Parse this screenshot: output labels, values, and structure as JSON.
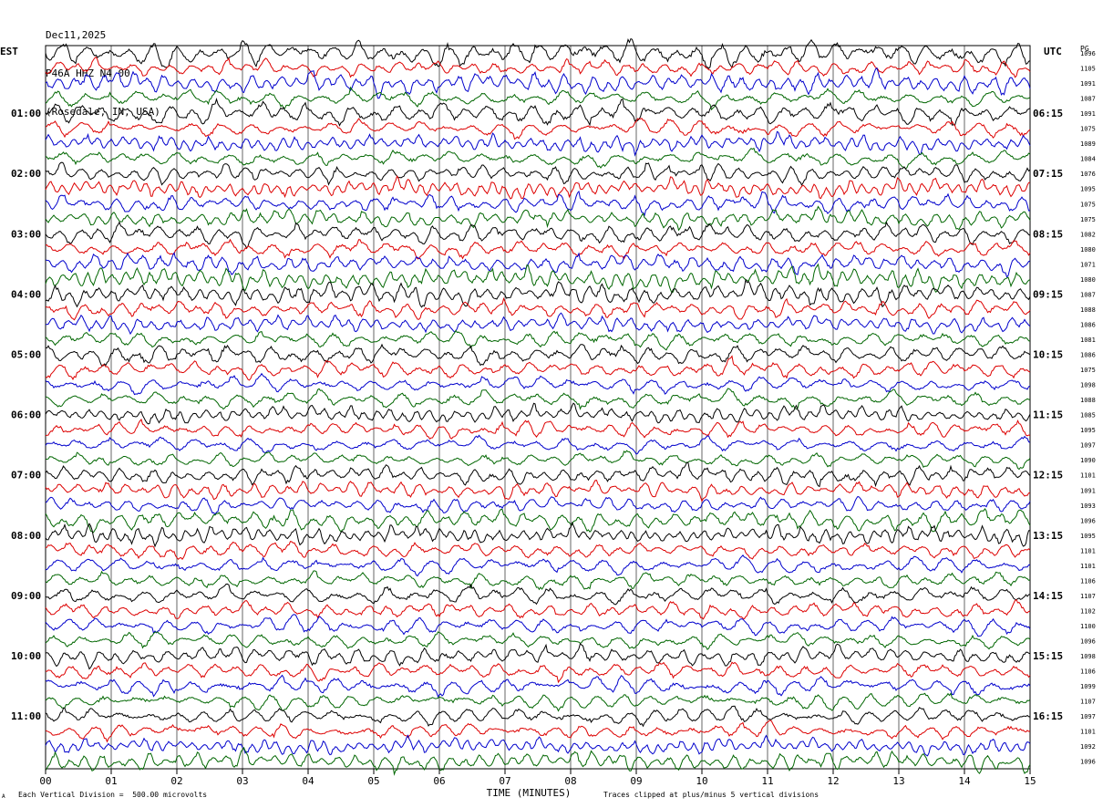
{
  "header": {
    "date": "Dec11,2025",
    "station": "P46A HHZ N4 00",
    "location": "(Rosedale, IN, USA)"
  },
  "left_timezone": "EST",
  "right_timezone": "UTC",
  "right_corner_label": "PG",
  "footer": {
    "scale_note": "Each Vertical Division =  500.00 microvolts",
    "clip_note": "Traces clipped at plus/minus 5 vertical divisions",
    "mark": "A"
  },
  "colors": {
    "trace_cycle": [
      "#000000",
      "#dd0000",
      "#0000cc",
      "#006600"
    ],
    "grid": "#000000"
  },
  "chart_data": {
    "type": "line",
    "title": "",
    "xlabel": "TIME (MINUTES)",
    "ylabel": "",
    "xlim": [
      0,
      15
    ],
    "x_ticks": [
      "00",
      "01",
      "02",
      "03",
      "04",
      "05",
      "06",
      "07",
      "08",
      "09",
      "10",
      "11",
      "12",
      "13",
      "14",
      "15"
    ],
    "left_hour_labels": [
      "01:00",
      "02:00",
      "03:00",
      "04:00",
      "05:00",
      "06:00",
      "07:00",
      "08:00",
      "09:00",
      "10:00",
      "11:00"
    ],
    "right_hour_labels": [
      "06:15",
      "07:15",
      "08:15",
      "09:15",
      "10:15",
      "11:15",
      "12:15",
      "13:15",
      "14:15",
      "15:15",
      "16:15"
    ],
    "trace_values": [
      "1096",
      "1105",
      "1091",
      "1087",
      "1091",
      "1075",
      "1089",
      "1084",
      "1076",
      "1095",
      "1075",
      "1075",
      "1082",
      "1080",
      "1071",
      "1080",
      "1087",
      "1088",
      "1086",
      "1081",
      "1086",
      "1075",
      "1098",
      "1088",
      "1085",
      "1095",
      "1097",
      "1090",
      "1101",
      "1091",
      "1093",
      "1096",
      "1095",
      "1101",
      "1101",
      "1106",
      "1107",
      "1102",
      "1100",
      "1096",
      "1098",
      "1106",
      "1099",
      "1107",
      "1097",
      "1101",
      "1092",
      "1096"
    ],
    "trace_amplitude_divisions": [
      0.85,
      0.55,
      0.75,
      0.55,
      0.75,
      0.55,
      0.6,
      0.55,
      0.65,
      0.6,
      0.6,
      0.6,
      0.65,
      0.6,
      0.65,
      0.7,
      0.75,
      0.6,
      0.55,
      0.55,
      0.65,
      0.6,
      0.55,
      0.55,
      0.55,
      0.55,
      0.5,
      0.5,
      0.6,
      0.55,
      0.55,
      0.7,
      0.6,
      0.55,
      0.55,
      0.55,
      0.6,
      0.55,
      0.55,
      0.5,
      0.6,
      0.55,
      0.55,
      0.55,
      0.6,
      0.55,
      0.55,
      0.65
    ],
    "clip_divisions": 5
  }
}
